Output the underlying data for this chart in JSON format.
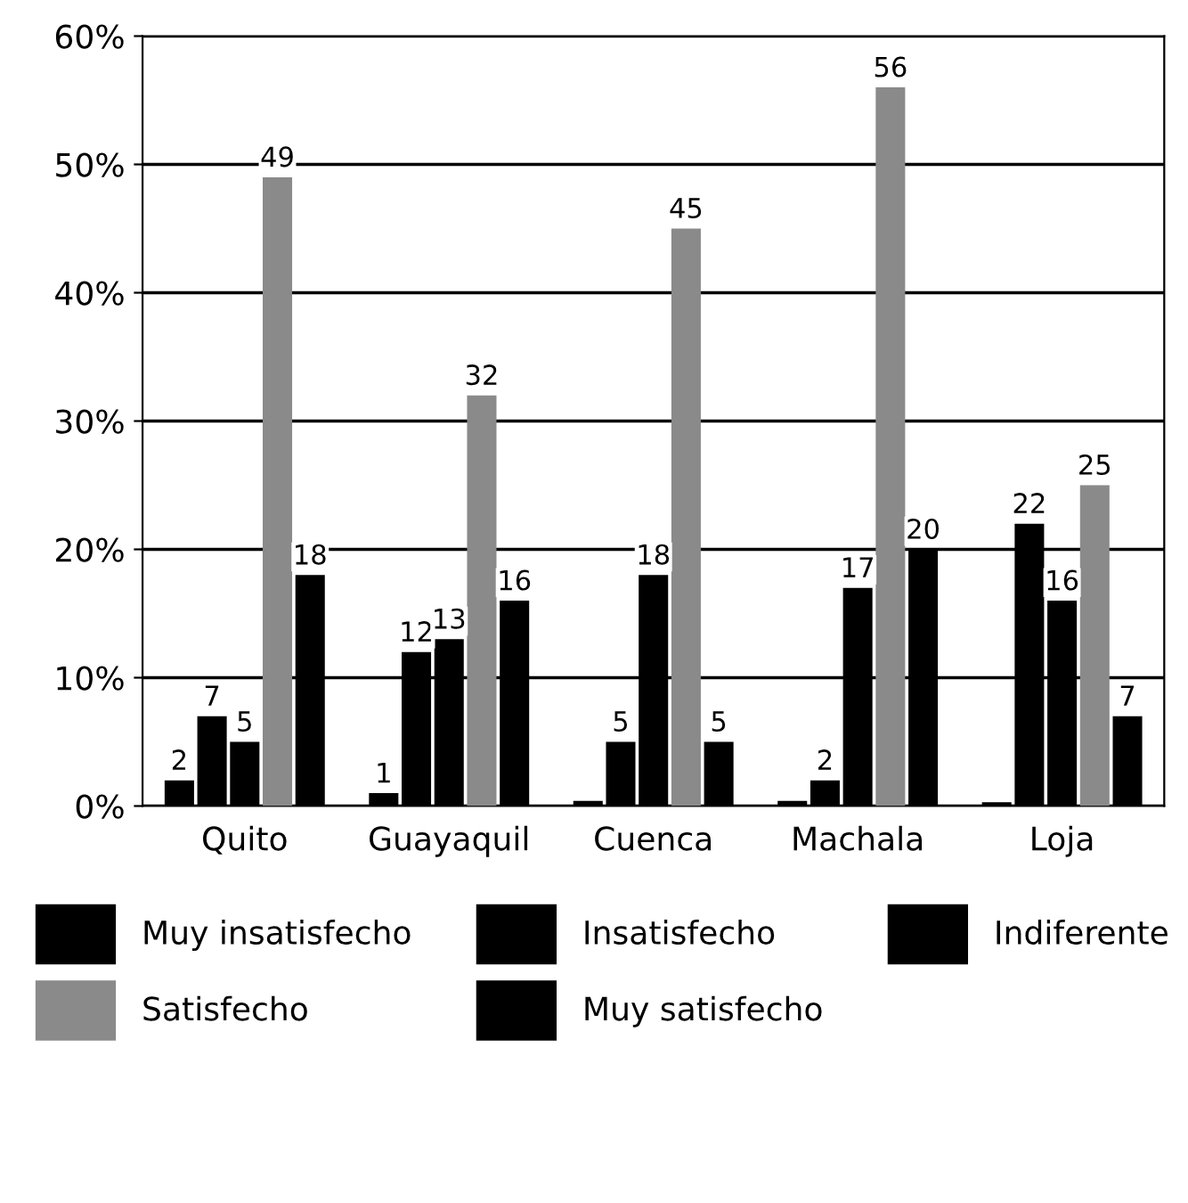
{
  "chart_data": {
    "type": "bar",
    "categories": [
      "Quito",
      "Guayaquil",
      "Cuenca",
      "Machala",
      "Loja"
    ],
    "series": [
      {
        "name": "Muy insatisfecho",
        "color": "#000000",
        "values": [
          2,
          1,
          0.4,
          0.4,
          0.3
        ],
        "value_labels": [
          "2",
          "1",
          null,
          null,
          null
        ]
      },
      {
        "name": "Insatisfecho",
        "color": "#000000",
        "values": [
          7,
          12,
          5,
          2,
          22
        ],
        "value_labels": [
          "7",
          "12",
          "5",
          "2",
          "22"
        ]
      },
      {
        "name": "Indiferente",
        "color": "#000000",
        "values": [
          5,
          13,
          18,
          17,
          16
        ],
        "value_labels": [
          "5",
          "13",
          "18",
          "17",
          "16"
        ]
      },
      {
        "name": "Satisfecho",
        "color": "#8a8a8a",
        "values": [
          49,
          32,
          45,
          56,
          25
        ],
        "value_labels": [
          "49",
          "32",
          "45",
          "56",
          "25"
        ]
      },
      {
        "name": "Muy satisfecho",
        "color": "#000000",
        "values": [
          18,
          16,
          5,
          20,
          7
        ],
        "value_labels": [
          "18",
          "16",
          "5",
          "20",
          "7"
        ]
      }
    ],
    "ylim": [
      0,
      60
    ],
    "yticks": [
      {
        "value": 0,
        "label": "0%"
      },
      {
        "value": 10,
        "label": "10%"
      },
      {
        "value": 20,
        "label": "20%"
      },
      {
        "value": 30,
        "label": "30%"
      },
      {
        "value": 40,
        "label": "40%"
      },
      {
        "value": 50,
        "label": "50%"
      },
      {
        "value": 60,
        "label": "60%"
      }
    ],
    "grid": "y",
    "legend": "bottom"
  }
}
